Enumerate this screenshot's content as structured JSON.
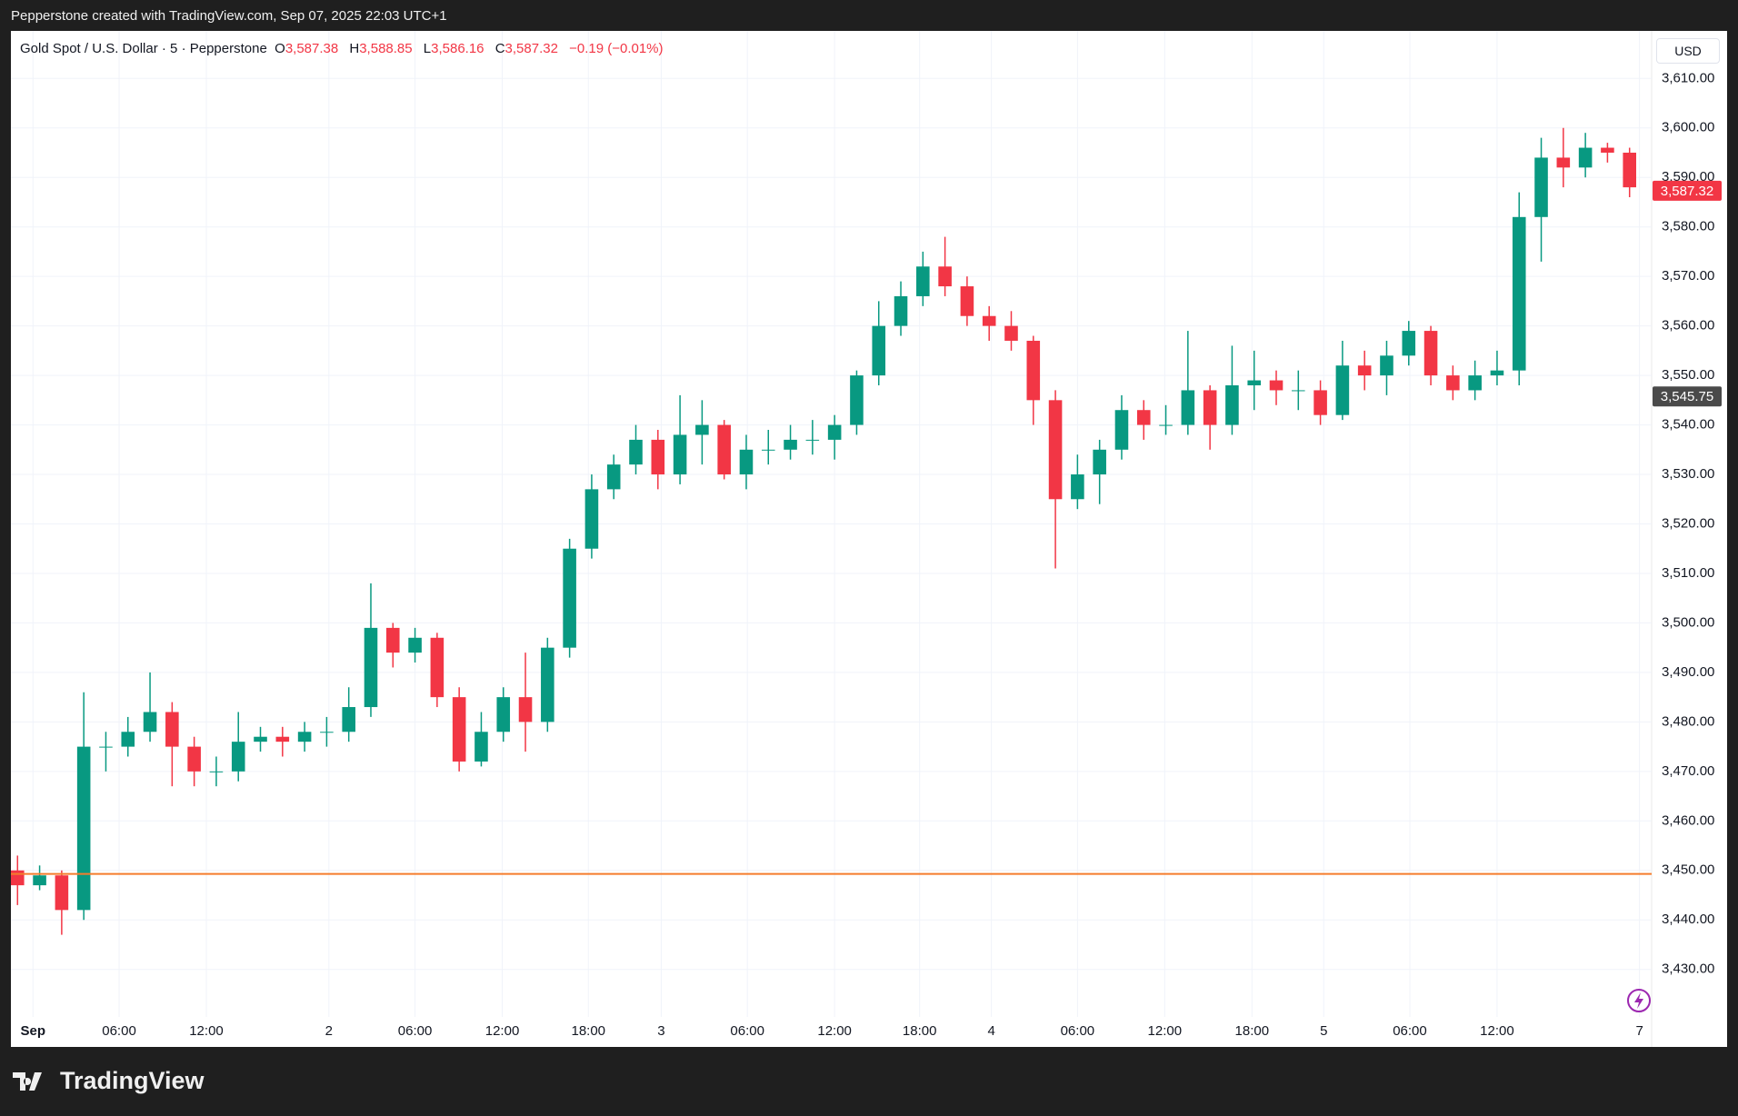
{
  "header": {
    "credit": "Pepperstone created with TradingView.com, Sep 07, 2025 22:03 UTC+1"
  },
  "legend": {
    "symbol": "Gold Spot / U.S. Dollar · 5 · Pepperstone",
    "o_key": "O",
    "o": "3,587.38",
    "h_key": "H",
    "h": "3,588.85",
    "l_key": "L",
    "l": "3,586.16",
    "c_key": "C",
    "c": "3,587.32",
    "change": "−0.19 (−0.01%)",
    "currency": "USD"
  },
  "footer": {
    "brand": "TradingView"
  },
  "chart_data": {
    "type": "candlestick",
    "up_color": "#089981",
    "down_color": "#f23645",
    "grid": true,
    "open": [
      3450,
      3447,
      3449,
      3442,
      3475,
      3475,
      3478,
      3482,
      3475,
      3470,
      3470,
      3476,
      3477,
      3476,
      3478,
      3478,
      3483,
      3499,
      3494,
      3497,
      3485,
      3472,
      3478,
      3485,
      3480,
      3495,
      3515,
      3527,
      3532,
      3537,
      3530,
      3538,
      3540,
      3530,
      3535,
      3535,
      3537,
      3537,
      3540,
      3550,
      3560,
      3566,
      3572,
      3568,
      3562,
      3560,
      3557,
      3545,
      3525,
      3530,
      3535,
      3543,
      3540,
      3540,
      3547,
      3540,
      3548,
      3549,
      3547,
      3547,
      3542,
      3552,
      3550,
      3554,
      3559,
      3550,
      3547,
      3550,
      3551,
      3582,
      3594,
      3592,
      3596,
      3595
    ],
    "high": [
      3453,
      3451,
      3450,
      3486,
      3478,
      3481,
      3490,
      3484,
      3477,
      3473,
      3482,
      3479,
      3479,
      3480,
      3481,
      3487,
      3508,
      3500,
      3499,
      3498,
      3487,
      3482,
      3487,
      3494,
      3497,
      3517,
      3530,
      3534,
      3540,
      3539,
      3546,
      3545,
      3541,
      3538,
      3539,
      3540,
      3541,
      3542,
      3551,
      3565,
      3569,
      3575,
      3578,
      3570,
      3564,
      3563,
      3558,
      3547,
      3534,
      3537,
      3546,
      3545,
      3544,
      3559,
      3548,
      3556,
      3555,
      3551,
      3551,
      3549,
      3557,
      3555,
      3557,
      3561,
      3560,
      3552,
      3553,
      3555,
      3587,
      3598,
      3600,
      3599,
      3597,
      3596
    ],
    "low": [
      3443,
      3446,
      3437,
      3440,
      3470,
      3473,
      3476,
      3467,
      3467,
      3467,
      3468,
      3474,
      3473,
      3474,
      3475,
      3476,
      3481,
      3491,
      3492,
      3483,
      3470,
      3471,
      3476,
      3474,
      3478,
      3493,
      3513,
      3525,
      3530,
      3527,
      3528,
      3532,
      3529,
      3527,
      3532,
      3533,
      3534,
      3533,
      3538,
      3548,
      3558,
      3564,
      3566,
      3560,
      3557,
      3555,
      3540,
      3511,
      3523,
      3524,
      3533,
      3537,
      3538,
      3538,
      3535,
      3538,
      3543,
      3544,
      3543,
      3540,
      3541,
      3547,
      3546,
      3552,
      3548,
      3545,
      3545,
      3548,
      3548,
      3573,
      3588,
      3590,
      3593,
      3586
    ],
    "close": [
      3447,
      3449,
      3442,
      3475,
      3475,
      3478,
      3482,
      3475,
      3470,
      3470,
      3476,
      3477,
      3476,
      3478,
      3478,
      3483,
      3499,
      3494,
      3497,
      3485,
      3472,
      3478,
      3485,
      3480,
      3495,
      3515,
      3527,
      3532,
      3537,
      3530,
      3538,
      3540,
      3530,
      3535,
      3535,
      3537,
      3537,
      3540,
      3550,
      3560,
      3566,
      3572,
      3568,
      3562,
      3560,
      3557,
      3545,
      3525,
      3530,
      3535,
      3543,
      3540,
      3540,
      3547,
      3540,
      3548,
      3549,
      3547,
      3547,
      3542,
      3552,
      3550,
      3554,
      3559,
      3550,
      3547,
      3550,
      3551,
      3582,
      3594,
      3592,
      3596,
      3595,
      3588
    ],
    "xlim": [
      -0.3,
      74
    ],
    "xticks": [
      {
        "value": 0.7,
        "label": "Sep"
      },
      {
        "value": 4.6,
        "label": "06:00"
      },
      {
        "value": 8.55,
        "label": "12:00"
      },
      {
        "value": 14.1,
        "label": "2"
      },
      {
        "value": 18,
        "label": "06:00"
      },
      {
        "value": 21.95,
        "label": "12:00"
      },
      {
        "value": 25.85,
        "label": "18:00"
      },
      {
        "value": 29.15,
        "label": "3"
      },
      {
        "value": 33.05,
        "label": "06:00"
      },
      {
        "value": 37,
        "label": "12:00"
      },
      {
        "value": 40.85,
        "label": "18:00"
      },
      {
        "value": 44.1,
        "label": "4"
      },
      {
        "value": 48,
        "label": "06:00"
      },
      {
        "value": 51.95,
        "label": "12:00"
      },
      {
        "value": 55.9,
        "label": "18:00"
      },
      {
        "value": 59.15,
        "label": "5"
      },
      {
        "value": 63.05,
        "label": "06:00"
      },
      {
        "value": 67,
        "label": "12:00"
      },
      {
        "value": 73.45,
        "label": "7"
      }
    ],
    "ylim": [
      3420.4,
      3619.6
    ],
    "yticks": [
      {
        "value": 3430,
        "label": "3,430.00"
      },
      {
        "value": 3440,
        "label": "3,440.00"
      },
      {
        "value": 3450,
        "label": "3,450.00"
      },
      {
        "value": 3460,
        "label": "3,460.00"
      },
      {
        "value": 3470,
        "label": "3,470.00"
      },
      {
        "value": 3480,
        "label": "3,480.00"
      },
      {
        "value": 3490,
        "label": "3,490.00"
      },
      {
        "value": 3500,
        "label": "3,500.00"
      },
      {
        "value": 3510,
        "label": "3,510.00"
      },
      {
        "value": 3520,
        "label": "3,520.00"
      },
      {
        "value": 3530,
        "label": "3,530.00"
      },
      {
        "value": 3540,
        "label": "3,540.00"
      },
      {
        "value": 3550,
        "label": "3,550.00"
      },
      {
        "value": 3560,
        "label": "3,560.00"
      },
      {
        "value": 3570,
        "label": "3,570.00"
      },
      {
        "value": 3580,
        "label": "3,580.00"
      },
      {
        "value": 3590,
        "label": "3,590.00"
      },
      {
        "value": 3600,
        "label": "3,600.00"
      },
      {
        "value": 3610,
        "label": "3,610.00"
      }
    ],
    "hline": {
      "value": 3449.3,
      "color": "#f57c2c"
    },
    "price_labels": [
      {
        "value": 3545.75,
        "label": "3,545.75",
        "color": "#4a4a4a"
      },
      {
        "value": 3587.32,
        "label": "3,587.32",
        "color": "#f23645"
      }
    ]
  }
}
